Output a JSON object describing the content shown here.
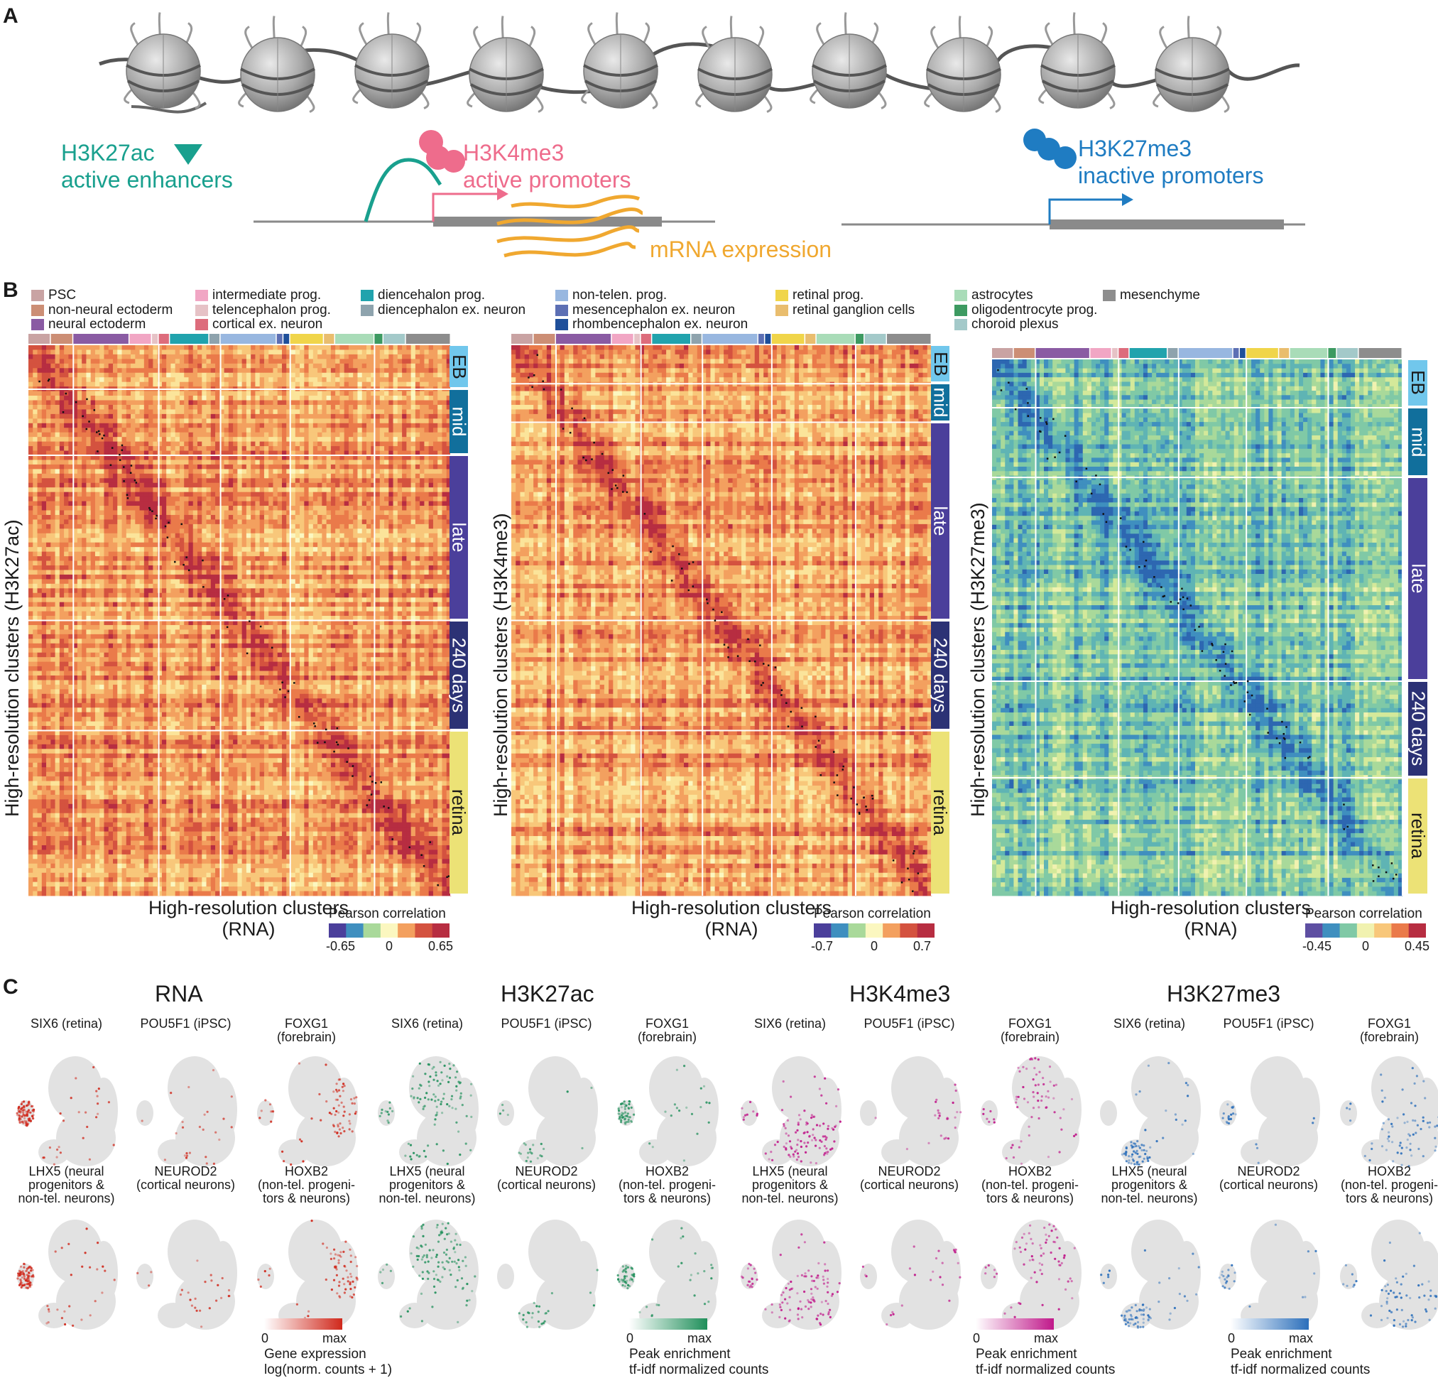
{
  "panels": {
    "a": "A",
    "b": "B",
    "c": "C"
  },
  "panel_a": {
    "marks": [
      {
        "name": "H3K27ac",
        "desc": "active enhancers",
        "color": "#19a08e"
      },
      {
        "name": "H3K4me3",
        "desc": "active promoters",
        "color": "#ee6c8c"
      },
      {
        "name": "H3K27me3",
        "desc": "inactive promoters",
        "color": "#1f7cc2"
      }
    ],
    "mrna": "mRNA expression",
    "mrna_color": "#f0a830",
    "nucleosome_count": 10
  },
  "legend": [
    {
      "label": "PSC",
      "color": "#c9a3a3"
    },
    {
      "label": "non-neural ectoderm",
      "color": "#cc8e75"
    },
    {
      "label": "neural ectoderm",
      "color": "#8a5ba3"
    },
    {
      "label": "intermediate prog.",
      "color": "#f1a6c4"
    },
    {
      "label": "telencephalon prog.",
      "color": "#e6c2c6"
    },
    {
      "label": "cortical ex. neuron",
      "color": "#dd6c7c"
    },
    {
      "label": "diencehalon prog.",
      "color": "#21a3ad"
    },
    {
      "label": "diencephalon ex. neuron",
      "color": "#8ea3ad"
    },
    {
      "label": "non-telen. prog.",
      "color": "#98b7e0"
    },
    {
      "label": "mesencephalon ex. neuron",
      "color": "#5c6fb4"
    },
    {
      "label": "rhombencephalon ex. neuron",
      "color": "#1f4f9a"
    },
    {
      "label": "retinal prog.",
      "color": "#f0d54a"
    },
    {
      "label": "retinal ganglion cells",
      "color": "#e9bd6e"
    },
    {
      "label": "astrocytes",
      "color": "#a9dcb8"
    },
    {
      "label": "oligodentrocyte prog.",
      "color": "#3d9a61"
    },
    {
      "label": "choroid plexus",
      "color": "#a3c9c9"
    },
    {
      "label": "mesenchyme",
      "color": "#8d8d8d"
    }
  ],
  "heatmaps": [
    {
      "ylabel": "High-resolution clusters (H3K27ac)",
      "xlabel": "High-resolution clusters\n(RNA)",
      "cb_title": "Pearson correlation",
      "cb_min": "-0.65",
      "cb_mid": "0",
      "cb_max": "0.65",
      "palette": "warm"
    },
    {
      "ylabel": "High-resolution clusters (H3K4me3)",
      "xlabel": "High-resolution clusters\n(RNA)",
      "cb_title": "Pearson correlation",
      "cb_min": "-0.7",
      "cb_mid": "0",
      "cb_max": "0.7",
      "palette": "warm"
    },
    {
      "ylabel": "High-resolution clusters (H3K27me3)",
      "xlabel": "High-resolution clusters\n(RNA)",
      "cb_title": "Pearson correlation",
      "cb_min": "-0.45",
      "cb_mid": "0",
      "cb_max": "0.45",
      "palette": "cool"
    }
  ],
  "stages": [
    {
      "label": "EB",
      "color": "#71c7ec",
      "text": "#1a1a1a"
    },
    {
      "label": "mid",
      "color": "#116f9c",
      "text": "#ffffff"
    },
    {
      "label": "late",
      "color": "#4b3f9b",
      "text": "#ffffff"
    },
    {
      "label": "240 days",
      "color": "#2c3275",
      "text": "#ffffff"
    },
    {
      "label": "retina",
      "color": "#ece276",
      "text": "#1a1a1a"
    }
  ],
  "panel_c": {
    "modalities": [
      {
        "name": "RNA",
        "color": "#d0281b",
        "legend_title": "Gene expression\nlog(norm. counts + 1)",
        "min": "0",
        "max": "max"
      },
      {
        "name": "H3K27ac",
        "color": "#1f8f5a",
        "legend_title": "Peak enrichment\ntf-idf normalized counts",
        "min": "0",
        "max": "max"
      },
      {
        "name": "H3K4me3",
        "color": "#c0188a",
        "legend_title": "Peak enrichment\ntf-idf normalized counts",
        "min": "0",
        "max": "max"
      },
      {
        "name": "H3K27me3",
        "color": "#2b6fbb",
        "legend_title": "Peak enrichment\ntf-idf normalized counts",
        "min": "0",
        "max": "max"
      }
    ],
    "genes_top": [
      "SIX6 (retina)",
      "POU5F1 (iPSC)",
      "FOXG1\n(forebrain)"
    ],
    "genes_bottom": [
      "LHX5 (neural\nprogenitors &\nnon-tel. neurons)",
      "NEUROD2\n(cortical neurons)",
      "HOXB2\n(non-tel. progeni-\ntors & neurons)"
    ]
  }
}
